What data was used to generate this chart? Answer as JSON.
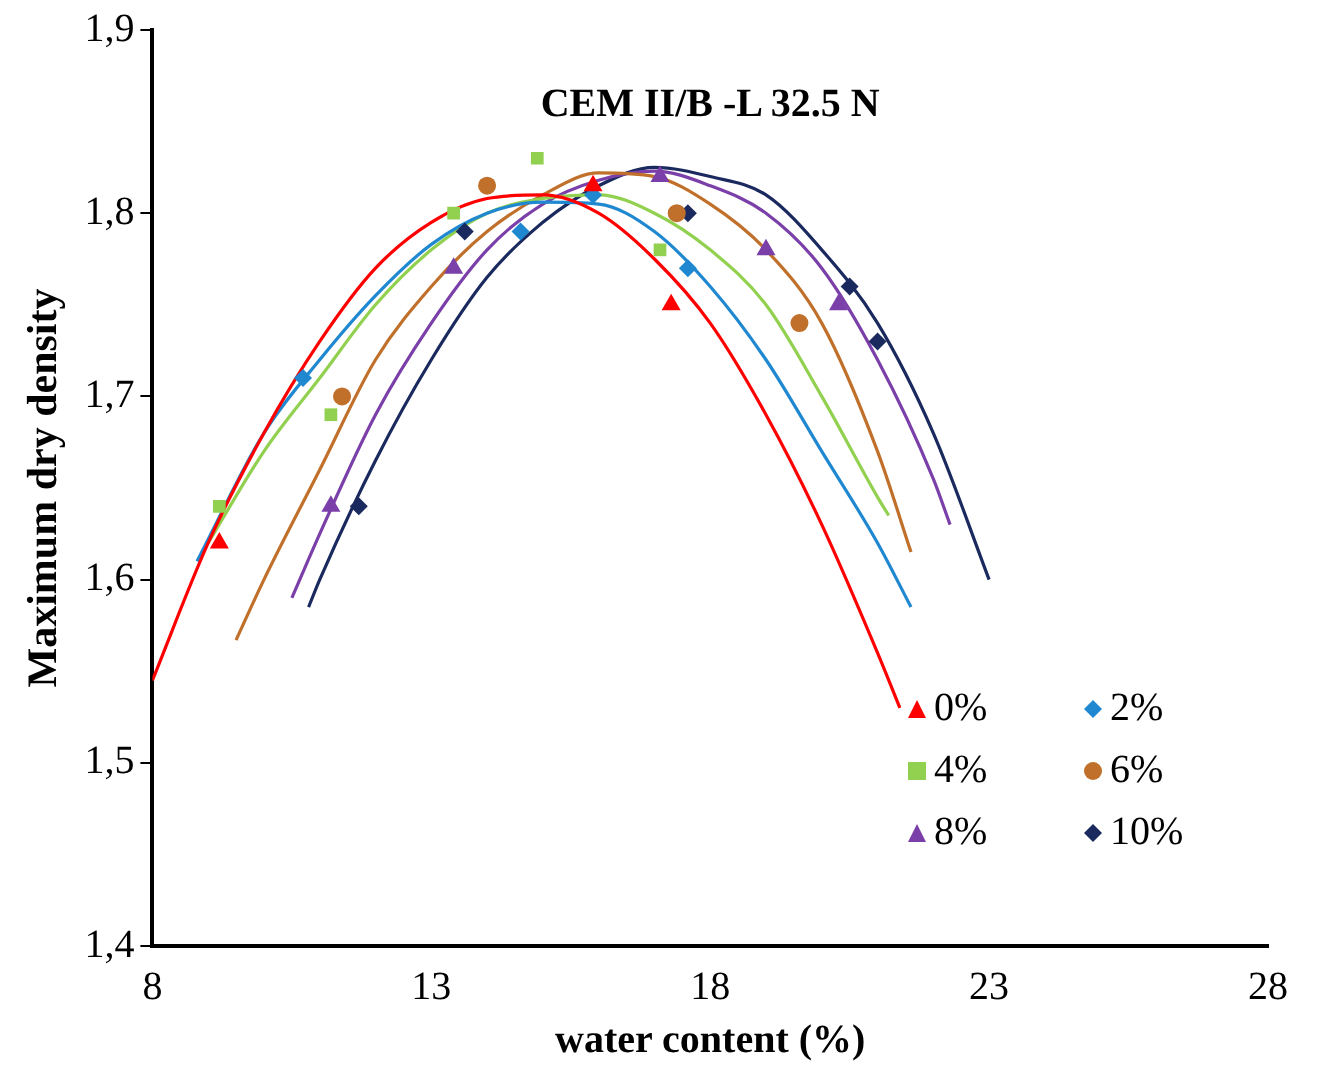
{
  "chart_data": {
    "type": "scatter",
    "title": "CEM II/B -L 32.5 N",
    "xlabel": "water content (%)",
    "ylabel": "Maximum dry density",
    "xlim": [
      8,
      28
    ],
    "xticks": [
      8,
      13,
      18,
      23,
      28
    ],
    "ylim": [
      1.4,
      1.9
    ],
    "yticks": [
      {
        "value": 1.4,
        "label": "1,4"
      },
      {
        "value": 1.5,
        "label": "1,5"
      },
      {
        "value": 1.6,
        "label": "1,6"
      },
      {
        "value": 1.7,
        "label": "1,7"
      },
      {
        "value": 1.8,
        "label": "1,8"
      },
      {
        "value": 1.9,
        "label": "1,9"
      }
    ],
    "grid": false,
    "legend": "bottom right",
    "series": [
      {
        "name": "0%",
        "marker": "triangle",
        "color": "#ff0000",
        "x": [
          9.2,
          15.9,
          17.3
        ],
        "values": [
          1.62,
          1.815,
          1.75
        ]
      },
      {
        "name": "2%",
        "marker": "diamond",
        "color": "#1f88d0",
        "x": [
          10.7,
          14.6,
          15.9,
          17.6
        ],
        "values": [
          1.71,
          1.79,
          1.81,
          1.77
        ]
      },
      {
        "name": "4%",
        "marker": "square",
        "color": "#92d050",
        "x": [
          9.2,
          11.2,
          13.4,
          14.9,
          17.1
        ],
        "values": [
          1.64,
          1.69,
          1.8,
          1.83,
          1.78
        ]
      },
      {
        "name": "6%",
        "marker": "circle",
        "color": "#c0702a",
        "x": [
          11.4,
          14.0,
          17.4,
          19.6
        ],
        "values": [
          1.7,
          1.815,
          1.8,
          1.74
        ]
      },
      {
        "name": "8%",
        "marker": "triangle",
        "color": "#7a3fa8",
        "x": [
          11.2,
          13.4,
          17.1,
          19.0,
          20.3
        ],
        "values": [
          1.64,
          1.77,
          1.82,
          1.78,
          1.75
        ]
      },
      {
        "name": "10%",
        "marker": "diamond",
        "color": "#1b2a5e",
        "x": [
          11.7,
          13.6,
          17.6,
          20.5,
          21.0
        ],
        "values": [
          1.64,
          1.79,
          1.8,
          1.76,
          1.73
        ]
      },
      {
        "type": "line",
        "marker": "none",
        "color": "#ff0000",
        "x": [
          8,
          9,
          10,
          11,
          12,
          13,
          14,
          15,
          16,
          17,
          18,
          19,
          20,
          21,
          21.4
        ],
        "values": [
          1.545,
          1.62,
          1.68,
          1.73,
          1.77,
          1.795,
          1.808,
          1.81,
          1.8,
          1.775,
          1.74,
          1.69,
          1.63,
          1.56,
          1.53
        ]
      },
      {
        "type": "line",
        "marker": "none",
        "color": "#1f88d0",
        "x": [
          8.8,
          10,
          11,
          12,
          13,
          14,
          15,
          16,
          17,
          18,
          19,
          20,
          21,
          21.6
        ],
        "values": [
          1.61,
          1.68,
          1.72,
          1.755,
          1.783,
          1.8,
          1.806,
          1.805,
          1.79,
          1.76,
          1.72,
          1.67,
          1.62,
          1.585
        ]
      },
      {
        "type": "line",
        "marker": "none",
        "color": "#92d050",
        "x": [
          9,
          10,
          11,
          12,
          13,
          14,
          15,
          16,
          17,
          18,
          19,
          20,
          21,
          21.2
        ],
        "values": [
          1.62,
          1.67,
          1.71,
          1.75,
          1.78,
          1.8,
          1.808,
          1.81,
          1.8,
          1.78,
          1.75,
          1.7,
          1.645,
          1.635
        ]
      },
      {
        "type": "line",
        "marker": "none",
        "color": "#c0702a",
        "x": [
          9.5,
          10,
          11,
          12,
          13,
          14,
          15,
          16,
          17,
          18,
          19,
          20,
          21,
          21.6
        ],
        "values": [
          1.567,
          1.6,
          1.66,
          1.72,
          1.76,
          1.79,
          1.81,
          1.822,
          1.82,
          1.805,
          1.78,
          1.74,
          1.67,
          1.615
        ]
      },
      {
        "type": "line",
        "marker": "none",
        "color": "#7a3fa8",
        "x": [
          10.5,
          11,
          12,
          13,
          14,
          15,
          16,
          17,
          18,
          19,
          20,
          21,
          22,
          22.3
        ],
        "values": [
          1.59,
          1.625,
          1.69,
          1.74,
          1.78,
          1.805,
          1.818,
          1.823,
          1.815,
          1.8,
          1.77,
          1.72,
          1.655,
          1.63
        ]
      },
      {
        "type": "line",
        "marker": "none",
        "color": "#1b2a5e",
        "x": [
          10.8,
          11,
          12,
          13,
          14,
          15,
          16,
          17,
          18,
          19,
          20,
          21,
          22,
          23
        ],
        "values": [
          1.585,
          1.6,
          1.665,
          1.72,
          1.765,
          1.795,
          1.815,
          1.825,
          1.82,
          1.81,
          1.78,
          1.74,
          1.68,
          1.6
        ]
      }
    ]
  }
}
